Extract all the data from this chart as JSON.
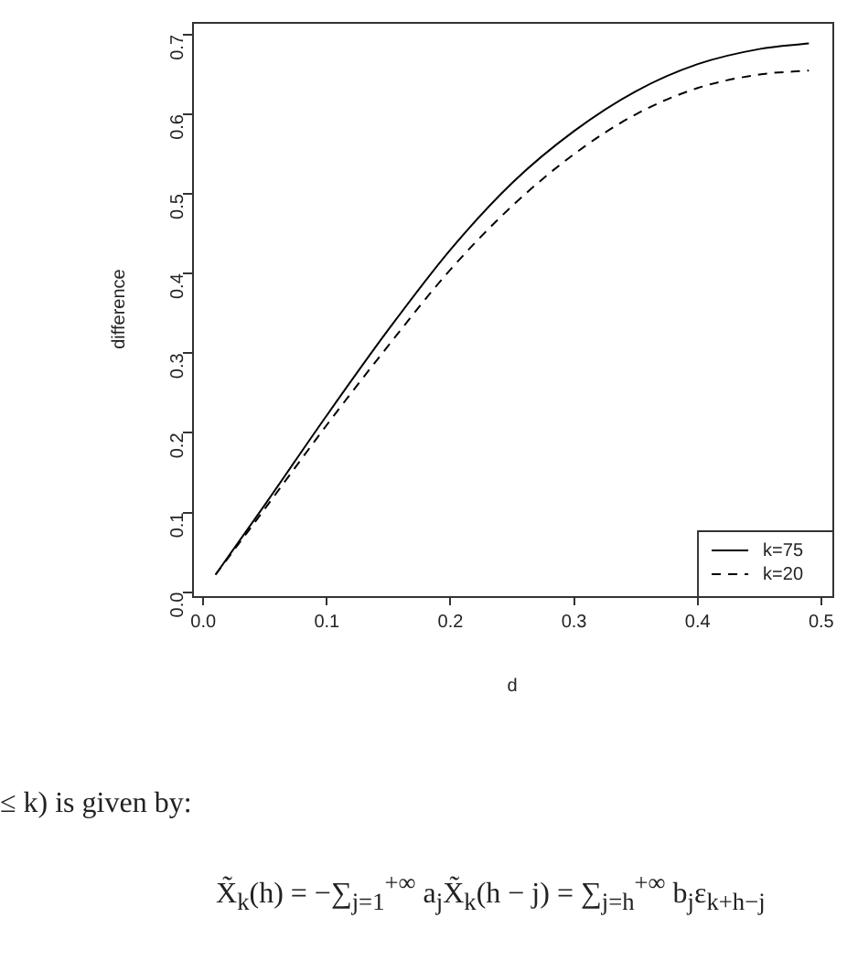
{
  "chart_data": {
    "type": "line",
    "xlabel": "d",
    "ylabel": "difference",
    "xlim": [
      -0.009,
      0.509
    ],
    "xticks": [
      {
        "value": 0,
        "label": "0.0"
      },
      0.1,
      0.2,
      0.3,
      0.4,
      0.5
    ],
    "ylim": [
      -0.005,
      0.716
    ],
    "yticks": [
      {
        "value": 0,
        "label": "0.0"
      },
      0.1,
      0.2,
      0.3,
      0.4,
      0.5,
      0.6,
      0.7
    ],
    "x": [
      0.01,
      0.05,
      0.1,
      0.15,
      0.2,
      0.25,
      0.3,
      0.35,
      0.4,
      0.45,
      0.49
    ],
    "series": [
      {
        "name": "k=75",
        "color": "#000000",
        "line_style": "solid",
        "values": [
          0.022,
          0.11,
          0.222,
          0.33,
          0.43,
          0.514,
          0.579,
          0.629,
          0.663,
          0.682,
          0.689
        ]
      },
      {
        "name": "k=20",
        "color": "#000000",
        "line_style": "dashed",
        "values": [
          0.022,
          0.105,
          0.21,
          0.31,
          0.405,
          0.485,
          0.55,
          0.6,
          0.633,
          0.65,
          0.655
        ]
      }
    ],
    "grid": false,
    "legend": "bottom right",
    "marker": "none",
    "annotations": [
      "≤ k) is given by:",
      "X̃$_{k}$(h) = −∑$_{j=1}$$^{+∞}$ a$_{j}$X̃$_{k}$(h − j) = ∑$_{j=h}$$^{+∞}$ b$_{j}$ε$_{k+h−j}$"
    ]
  }
}
